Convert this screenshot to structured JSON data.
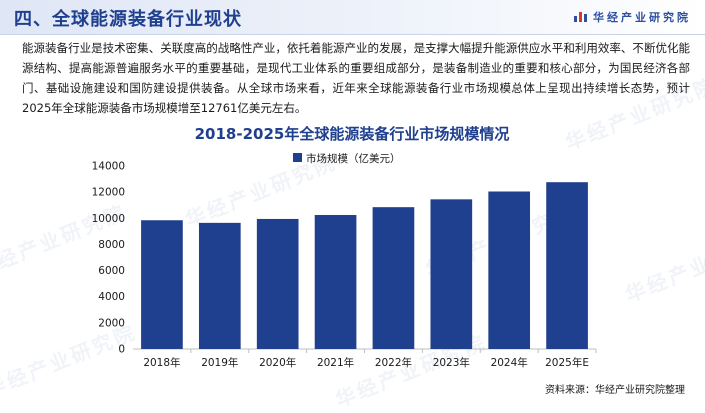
{
  "header": {
    "title": "四、全球能源装备行业现状",
    "brand": "华经产业研究院"
  },
  "intro": "能源装备行业是技术密集、关联度高的战略性产业，依托着能源产业的发展，是支撑大幅提升能源供应水平和利用效率、不断优化能源结构、提高能源普遍服务水平的重要基础，是现代工业体系的重要组成部分，是装备制造业的重要和核心部分，为国民经济各部门、基础设施建设和国防建设提供装备。从全球市场来看，近年来全球能源装备行业市场规模总体上呈现出持续增长态势，预计2025年全球能源装备市场规模增至12761亿美元左右。",
  "watermark": "华经产业研究院",
  "source": "资料来源：华经产业研究院整理",
  "colors": {
    "bar": "#1f3f8f",
    "title": "#1f3f8f",
    "header_text": "#1f3f8f",
    "accent_red": "#d63a2f"
  },
  "chart_data": {
    "type": "bar",
    "title": "2018-2025年全球能源装备行业市场规模情况",
    "categories": [
      "2018年",
      "2019年",
      "2020年",
      "2021年",
      "2022年",
      "2023年",
      "2024年",
      "2025年E"
    ],
    "series": [
      {
        "name": "市场规模（亿美元）",
        "values": [
          9850,
          9650,
          9950,
          10250,
          10850,
          11450,
          12050,
          12761
        ]
      }
    ],
    "yticks": [
      0,
      2000,
      4000,
      6000,
      8000,
      10000,
      12000,
      14000
    ],
    "ylim": [
      0,
      14000
    ],
    "grid": false,
    "legend_position": "top-center"
  }
}
